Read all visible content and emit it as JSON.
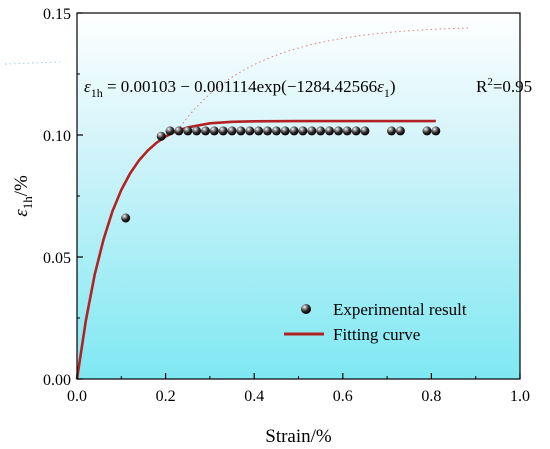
{
  "chart_data": {
    "type": "scatter",
    "xlabel": "Strain/%",
    "ylabel_main": "ε",
    "ylabel_sub": "1h",
    "ylabel_unit": "/%",
    "xlim": [
      0.0,
      1.0
    ],
    "ylim": [
      0.0,
      0.15
    ],
    "x_ticks": [
      0.0,
      0.2,
      0.4,
      0.6,
      0.8,
      1.0
    ],
    "x_tick_labels": [
      "0.0",
      "0.2",
      "0.4",
      "0.6",
      "0.8",
      "1.0"
    ],
    "y_ticks": [
      0.0,
      0.05,
      0.1,
      0.15
    ],
    "y_tick_labels": [
      "0.00",
      "0.05",
      "0.10",
      "0.15"
    ],
    "grid": false,
    "background": "cyan-gradient",
    "equation": {
      "lhs_symbol": "ε",
      "lhs_sub": "1h",
      "rhs": " = 0.00103 − 0.001114exp(−1284.42566",
      "rhs_symbol": "ε",
      "rhs_sub": "1",
      "rhs_close": ")",
      "r2_label": "R",
      "r2_sup": "2",
      "r2_value": "=0.95"
    },
    "series": [
      {
        "name": "Experimental result",
        "kind": "scatter",
        "marker": "sphere",
        "x": [
          0.11,
          0.19,
          0.21,
          0.23,
          0.25,
          0.27,
          0.29,
          0.31,
          0.33,
          0.35,
          0.37,
          0.39,
          0.41,
          0.43,
          0.45,
          0.47,
          0.49,
          0.51,
          0.53,
          0.55,
          0.57,
          0.59,
          0.61,
          0.63,
          0.65,
          0.71,
          0.73,
          0.79,
          0.81
        ],
        "y": [
          0.066,
          0.0995,
          0.1017,
          0.1017,
          0.1017,
          0.1017,
          0.1017,
          0.1017,
          0.1017,
          0.1017,
          0.1017,
          0.1017,
          0.1017,
          0.1017,
          0.1017,
          0.1017,
          0.1017,
          0.1017,
          0.1017,
          0.1017,
          0.1017,
          0.1017,
          0.1017,
          0.1017,
          0.1017,
          0.1017,
          0.1017,
          0.1017,
          0.1017
        ]
      },
      {
        "name": "Fitting curve",
        "kind": "line",
        "color": "#b22222",
        "x": [
          0.0,
          0.02,
          0.04,
          0.06,
          0.08,
          0.1,
          0.12,
          0.14,
          0.16,
          0.18,
          0.2,
          0.22,
          0.25,
          0.3,
          0.35,
          0.4,
          0.5,
          0.6,
          0.7,
          0.81
        ],
        "y": [
          0.0,
          0.0241,
          0.0428,
          0.0573,
          0.0687,
          0.0775,
          0.0843,
          0.0896,
          0.0937,
          0.0969,
          0.0994,
          0.1013,
          0.1031,
          0.1048,
          0.1054,
          0.1056,
          0.1057,
          0.1057,
          0.1057,
          0.1057
        ]
      }
    ],
    "legend": {
      "position": "lower-right",
      "entries": [
        "Experimental result",
        "Fitting curve"
      ]
    }
  }
}
